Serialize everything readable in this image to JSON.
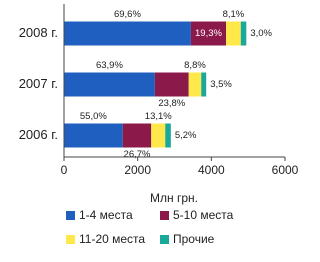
{
  "chart_data": {
    "type": "bar",
    "orientation": "horizontal",
    "stacked": true,
    "categories": [
      "2008 г.",
      "2007 г.",
      "2006 г."
    ],
    "x_label": "Млн грн.",
    "xlim": [
      0,
      6000
    ],
    "xticks": [
      0,
      2000,
      4000,
      6000
    ],
    "series": [
      {
        "name": "1-4 места",
        "color": "#1f5fbf",
        "values": [
          3445,
          2467,
          1595
        ],
        "share_labels": [
          "69,6%",
          "63,9%",
          "55,0%"
        ]
      },
      {
        "name": "5-10 места",
        "color": "#8b1a4a",
        "values": [
          955,
          919,
          774
        ],
        "share_labels": [
          "19,3%",
          "23,8%",
          "26,7%"
        ]
      },
      {
        "name": "11-20 места",
        "color": "#ffe84a",
        "values": [
          400,
          340,
          380
        ],
        "share_labels": [
          "8,1%",
          "8,8%",
          "13,1%"
        ]
      },
      {
        "name": "Прочие",
        "color": "#19a89a",
        "values": [
          150,
          135,
          151
        ],
        "share_labels": [
          "3,0%",
          "3,5%",
          "5,2%"
        ]
      }
    ]
  }
}
